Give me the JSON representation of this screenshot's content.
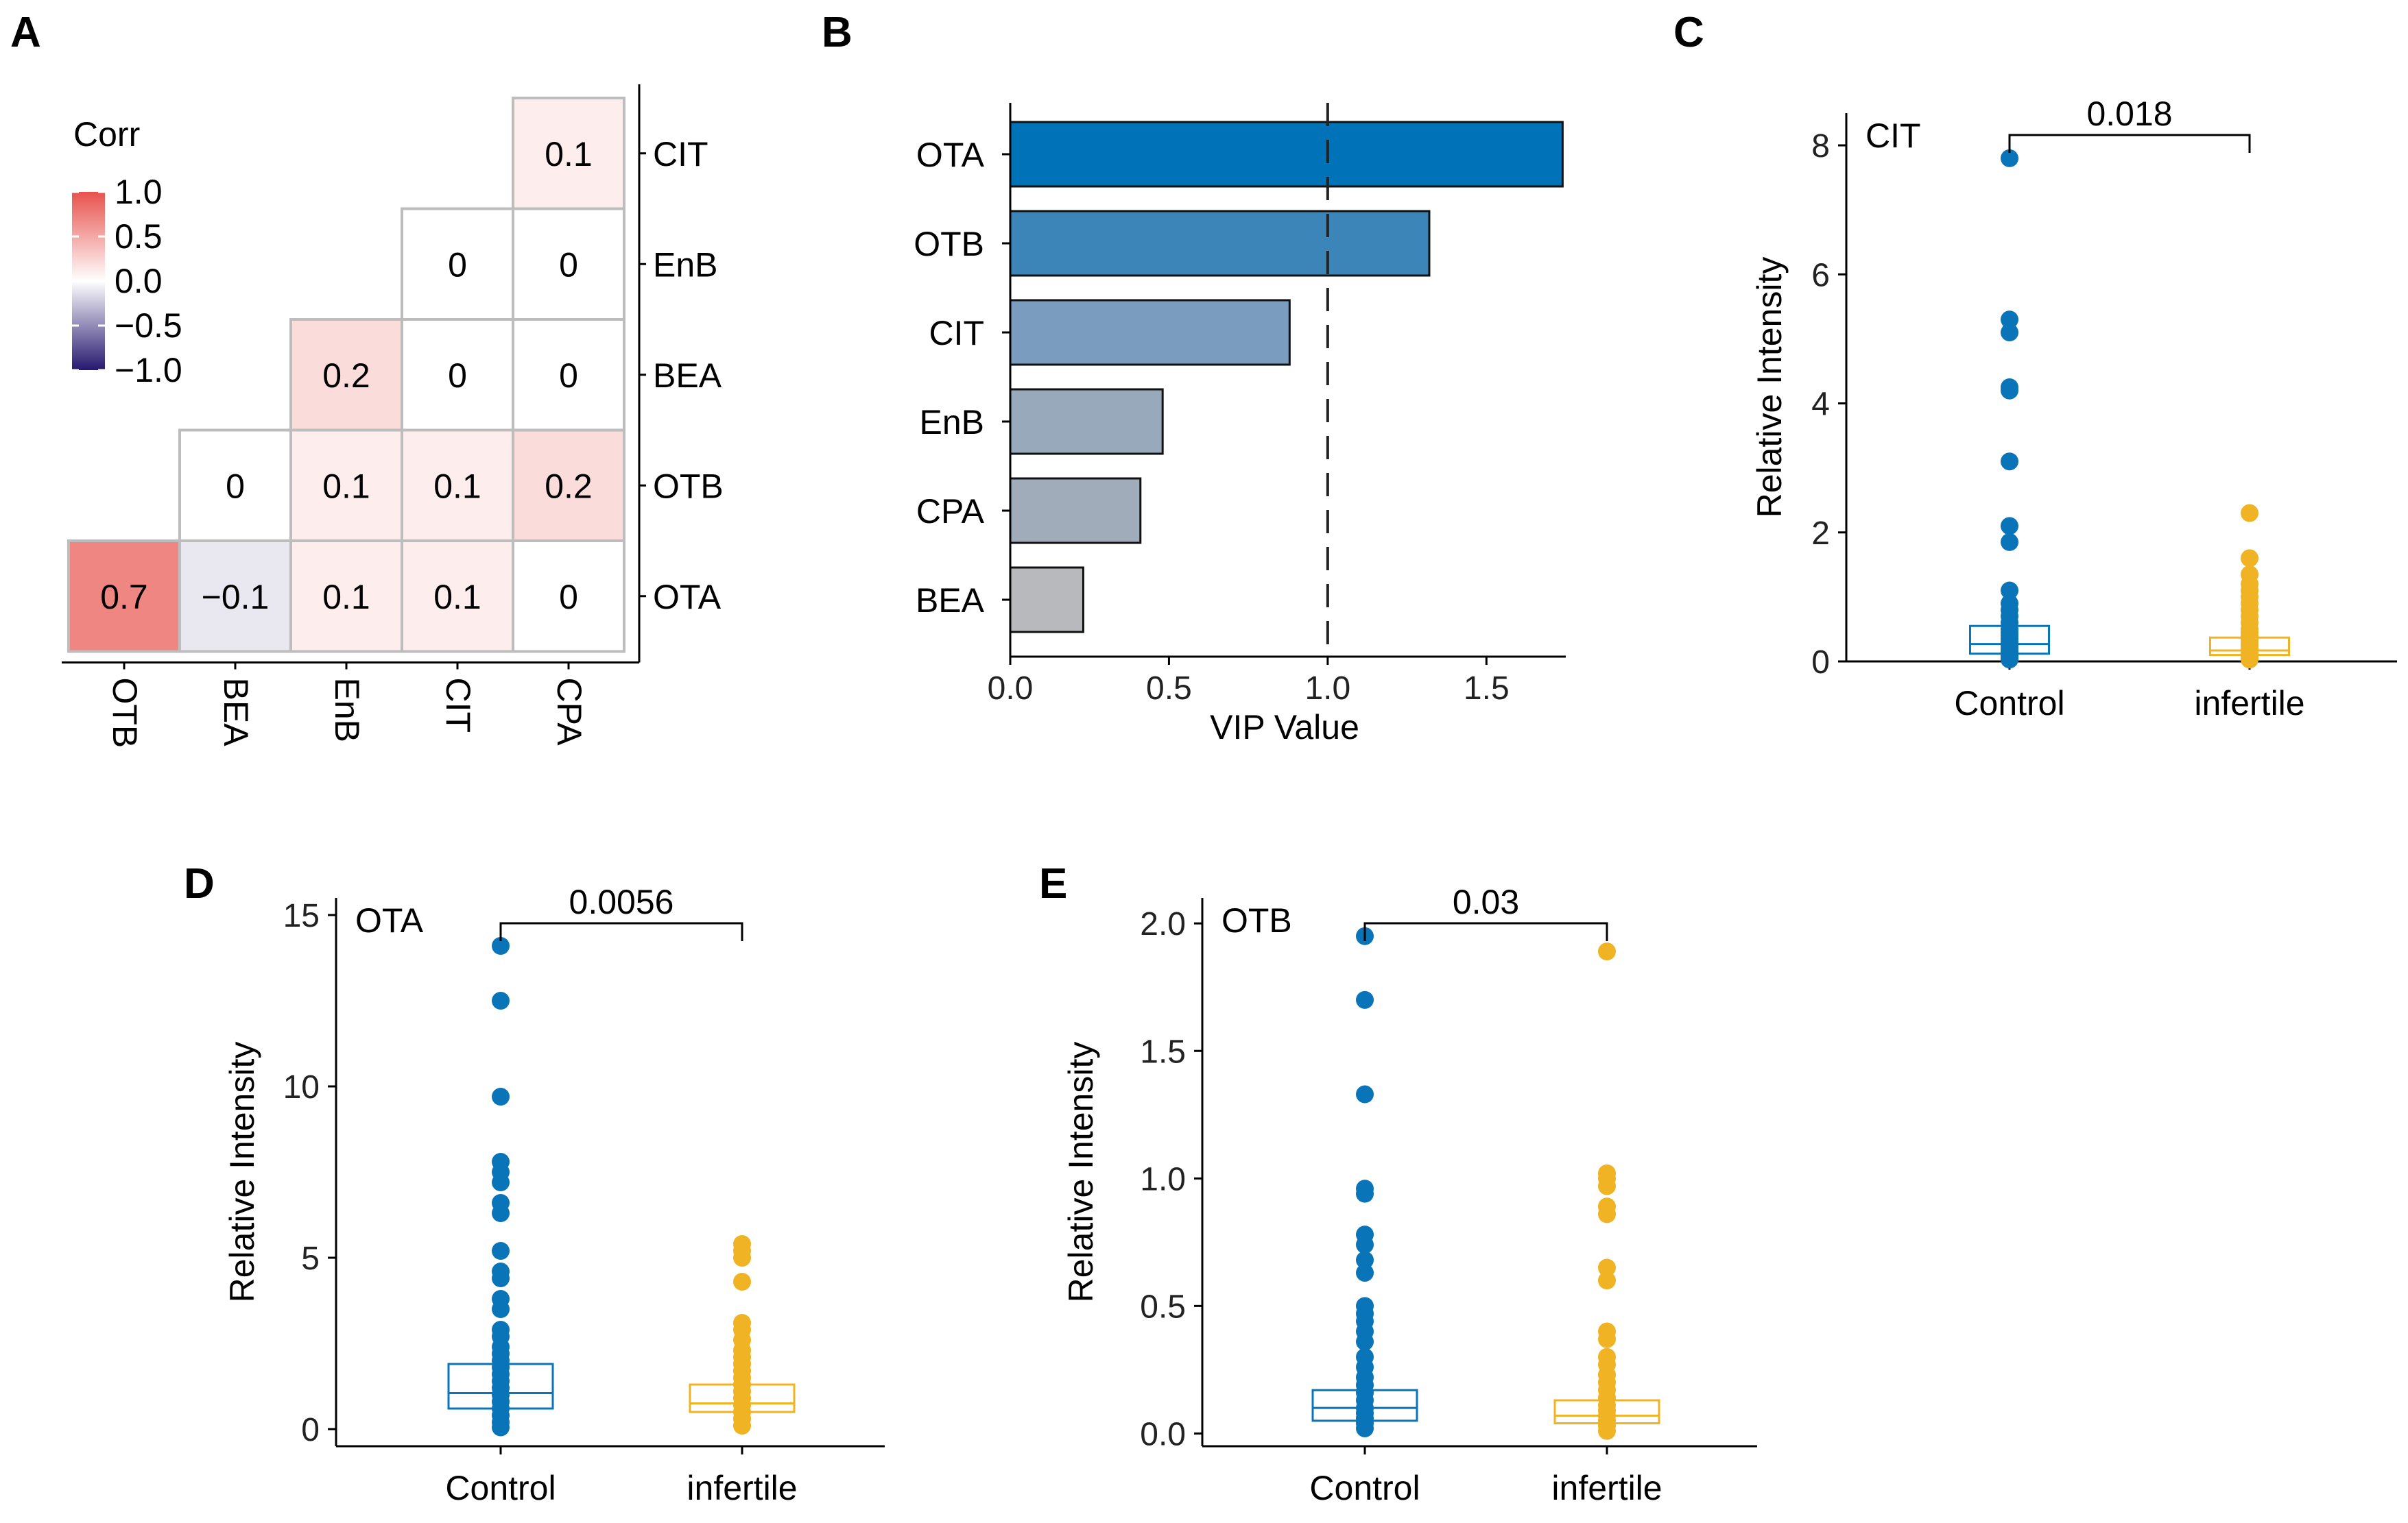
{
  "chart_data": [
    {
      "panel": "A",
      "type": "heatmap",
      "legend_title": "Corr",
      "legend_ticks": [
        "1.0",
        "0.5",
        "0.0",
        "−0.5",
        "−1.0"
      ],
      "legend_values": [
        1.0,
        0.5,
        0.0,
        -0.5,
        -1.0
      ],
      "colors": {
        "high": "#e8524d",
        "mid": "#ffffff",
        "low": "#26186f"
      },
      "x_labels": [
        "OTB",
        "BEA",
        "EnB",
        "CIT",
        "CPA"
      ],
      "y_labels": [
        "CIT",
        "EnB",
        "BEA",
        "OTB",
        "OTA"
      ],
      "cells": [
        {
          "row": 0,
          "col": 4,
          "value": 0.1,
          "label": "0.1"
        },
        {
          "row": 1,
          "col": 3,
          "value": 0.0,
          "label": "0"
        },
        {
          "row": 1,
          "col": 4,
          "value": 0.0,
          "label": "0"
        },
        {
          "row": 2,
          "col": 2,
          "value": 0.2,
          "label": "0.2"
        },
        {
          "row": 2,
          "col": 3,
          "value": 0.0,
          "label": "0"
        },
        {
          "row": 2,
          "col": 4,
          "value": 0.0,
          "label": "0"
        },
        {
          "row": 3,
          "col": 1,
          "value": 0.0,
          "label": "0"
        },
        {
          "row": 3,
          "col": 2,
          "value": 0.1,
          "label": "0.1"
        },
        {
          "row": 3,
          "col": 3,
          "value": 0.1,
          "label": "0.1"
        },
        {
          "row": 3,
          "col": 4,
          "value": 0.2,
          "label": "0.2"
        },
        {
          "row": 4,
          "col": 0,
          "value": 0.7,
          "label": "0.7"
        },
        {
          "row": 4,
          "col": 1,
          "value": -0.1,
          "label": "−0.1"
        },
        {
          "row": 4,
          "col": 2,
          "value": 0.1,
          "label": "0.1"
        },
        {
          "row": 4,
          "col": 3,
          "value": 0.1,
          "label": "0.1"
        },
        {
          "row": 4,
          "col": 4,
          "value": 0.0,
          "label": "0"
        }
      ]
    },
    {
      "panel": "B",
      "type": "bar",
      "orientation": "horizontal",
      "categories": [
        "OTA",
        "OTB",
        "CIT",
        "EnB",
        "CPA",
        "BEA"
      ],
      "values": [
        1.74,
        1.32,
        0.88,
        0.48,
        0.41,
        0.23
      ],
      "colors": [
        "#0072b8",
        "#3c85b8",
        "#7a9cbf",
        "#97a9bb",
        "#a1acba",
        "#b8b9bc"
      ],
      "xlabel": "VIP Value",
      "xlim": [
        0,
        1.75
      ],
      "xticks": [
        "0.0",
        "0.5",
        "1.0",
        "1.5"
      ],
      "reference_line": 1.0
    },
    {
      "panel": "C",
      "type": "scatter",
      "title": "CIT",
      "ylabel": "Relative Intensity",
      "ylim": [
        0,
        8.5
      ],
      "yticks": [
        "0",
        "2",
        "4",
        "6",
        "8"
      ],
      "groups": [
        "Control",
        "infertile"
      ],
      "pvalue": "0.018",
      "box": [
        {
          "q1": 0.12,
          "median": 0.27,
          "q3": 0.55
        },
        {
          "q1": 0.1,
          "median": 0.17,
          "q3": 0.37
        }
      ],
      "points": [
        [
          7.8,
          5.3,
          5.1,
          4.25,
          4.2,
          3.1,
          2.1,
          1.85,
          1.1,
          0.9,
          0.8,
          0.7,
          0.6,
          0.5,
          0.45,
          0.4,
          0.35,
          0.3,
          0.25,
          0.2,
          0.15,
          0.12,
          0.1,
          0.07,
          0.05,
          0.03
        ],
        [
          2.3,
          1.6,
          1.35,
          1.2,
          1.1,
          1.0,
          0.9,
          0.8,
          0.7,
          0.6,
          0.5,
          0.45,
          0.4,
          0.35,
          0.3,
          0.25,
          0.2,
          0.15,
          0.12,
          0.1,
          0.08,
          0.05,
          0.03
        ]
      ]
    },
    {
      "panel": "D",
      "type": "scatter",
      "title": "OTA",
      "ylabel": "Relative Intensity",
      "ylim": [
        -0.5,
        15.5
      ],
      "yticks": [
        "0",
        "5",
        "10",
        "15"
      ],
      "groups": [
        "Control",
        "infertile"
      ],
      "pvalue": "0.0056",
      "box": [
        {
          "q1": 0.6,
          "median": 1.05,
          "q3": 1.9
        },
        {
          "q1": 0.5,
          "median": 0.75,
          "q3": 1.3
        }
      ],
      "points": [
        [
          14.1,
          12.5,
          9.7,
          7.8,
          7.5,
          7.2,
          6.6,
          6.3,
          5.2,
          4.6,
          4.4,
          3.8,
          3.5,
          2.9,
          2.7,
          2.4,
          2.2,
          2.0,
          1.8,
          1.6,
          1.4,
          1.2,
          1.0,
          0.8,
          0.6,
          0.4,
          0.2,
          0.05
        ],
        [
          5.4,
          5.2,
          5.0,
          4.3,
          3.1,
          2.9,
          2.6,
          2.3,
          2.1,
          1.9,
          1.7,
          1.5,
          1.3,
          1.1,
          0.9,
          0.7,
          0.5,
          0.3,
          0.1
        ]
      ]
    },
    {
      "panel": "E",
      "type": "scatter",
      "title": "OTB",
      "ylabel": "Relative Intensity",
      "ylim": [
        -0.05,
        2.1
      ],
      "yticks": [
        "0.0",
        "0.5",
        "1.0",
        "1.5",
        "2.0"
      ],
      "groups": [
        "Control",
        "infertile"
      ],
      "pvalue": "0.03",
      "box": [
        {
          "q1": 0.05,
          "median": 0.1,
          "q3": 0.17
        },
        {
          "q1": 0.04,
          "median": 0.07,
          "q3": 0.13
        }
      ],
      "points": [
        [
          1.95,
          1.7,
          1.33,
          0.96,
          0.94,
          0.78,
          0.74,
          0.68,
          0.63,
          0.5,
          0.47,
          0.44,
          0.4,
          0.36,
          0.3,
          0.26,
          0.22,
          0.19,
          0.16,
          0.13,
          0.1,
          0.08,
          0.06,
          0.04,
          0.02
        ],
        [
          1.89,
          1.02,
          1.0,
          0.97,
          0.89,
          0.86,
          0.65,
          0.6,
          0.4,
          0.37,
          0.3,
          0.27,
          0.23,
          0.2,
          0.17,
          0.14,
          0.11,
          0.09,
          0.07,
          0.05,
          0.03,
          0.01
        ]
      ]
    }
  ],
  "panel_labels": [
    "A",
    "B",
    "C",
    "D",
    "E"
  ],
  "group_colors": {
    "Control": "#0a74b9",
    "infertile": "#f0b323"
  }
}
